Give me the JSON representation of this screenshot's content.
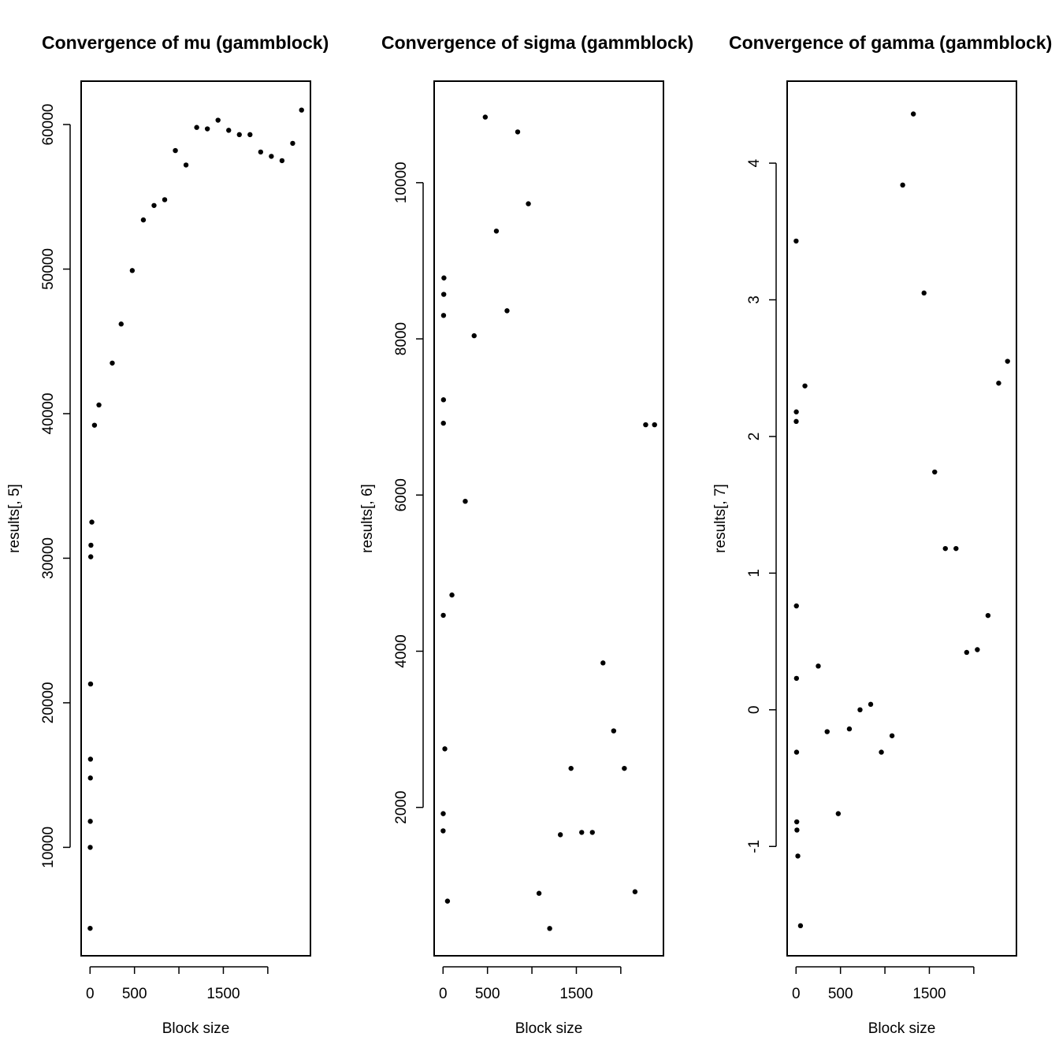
{
  "chart_data": [
    {
      "type": "scatter",
      "title": "Convergence of mu (gammblock)",
      "xlabel": "Block size",
      "ylabel": "results[, 5]",
      "xlim": [
        -100,
        2480
      ],
      "ylim": [
        2500,
        63000
      ],
      "xticks": [
        0,
        500,
        1000,
        1500,
        2000
      ],
      "xtick_labels": [
        "0",
        "500",
        "",
        "1500",
        ""
      ],
      "yticks": [
        10000,
        20000,
        30000,
        40000,
        50000,
        60000
      ],
      "ytick_labels": [
        "10000",
        "20000",
        "30000",
        "40000",
        "50000",
        "60000"
      ],
      "x": [
        1,
        2,
        3,
        4,
        5,
        6,
        8,
        10,
        20,
        50,
        100,
        250,
        350,
        475,
        600,
        720,
        840,
        960,
        1080,
        1200,
        1320,
        1440,
        1560,
        1680,
        1800,
        1920,
        2040,
        2160,
        2280,
        2380
      ],
      "y": [
        4400,
        10000,
        11800,
        14800,
        16100,
        21300,
        30100,
        30900,
        32500,
        39200,
        40600,
        43500,
        46200,
        49900,
        53400,
        54400,
        54800,
        58200,
        57200,
        59800,
        59700,
        60300,
        59600,
        59300,
        59300,
        58100,
        57800,
        57500,
        58700,
        61000
      ]
    },
    {
      "type": "scatter",
      "title": "Convergence of sigma (gammblock)",
      "xlabel": "Block size",
      "ylabel": "results[, 6]",
      "xlim": [
        -100,
        2480
      ],
      "ylim": [
        100,
        11300
      ],
      "xticks": [
        0,
        500,
        1000,
        1500,
        2000
      ],
      "xtick_labels": [
        "0",
        "500",
        "",
        "1500",
        ""
      ],
      "yticks": [
        2000,
        4000,
        6000,
        8000,
        10000
      ],
      "ytick_labels": [
        "2000",
        "4000",
        "6000",
        "8000",
        "10000"
      ],
      "x": [
        1,
        2,
        3,
        4,
        5,
        6,
        8,
        10,
        20,
        50,
        100,
        250,
        350,
        475,
        600,
        720,
        840,
        960,
        1080,
        1200,
        1320,
        1440,
        1560,
        1680,
        1800,
        1920,
        2040,
        2160,
        2280,
        2380
      ],
      "y": [
        1700,
        1920,
        4460,
        6920,
        7220,
        8300,
        8570,
        8780,
        2750,
        800,
        4720,
        5920,
        8040,
        10840,
        9380,
        8360,
        10650,
        9730,
        900,
        450,
        1650,
        2500,
        1680,
        1680,
        3850,
        2980,
        2500,
        920,
        6900,
        6900
      ]
    },
    {
      "type": "scatter",
      "title": "Convergence of gamma (gammblock)",
      "xlabel": "Block size",
      "ylabel": "results[, 7]",
      "xlim": [
        -100,
        2480
      ],
      "ylim": [
        -1.8,
        4.6
      ],
      "xticks": [
        0,
        500,
        1000,
        1500,
        2000
      ],
      "xtick_labels": [
        "0",
        "500",
        "",
        "1500",
        ""
      ],
      "yticks": [
        -1,
        0,
        1,
        2,
        3,
        4
      ],
      "ytick_labels": [
        "-1",
        "0",
        "1",
        "2",
        "3",
        "4"
      ],
      "x": [
        1,
        2,
        3,
        4,
        5,
        6,
        8,
        10,
        20,
        50,
        100,
        250,
        350,
        475,
        600,
        720,
        840,
        960,
        1080,
        1200,
        1320,
        1440,
        1560,
        1680,
        1800,
        1920,
        2040,
        2160,
        2280,
        2380
      ],
      "y": [
        3.43,
        2.11,
        2.18,
        0.76,
        0.23,
        -0.31,
        -0.82,
        -0.88,
        -1.07,
        -1.58,
        2.37,
        0.32,
        -0.16,
        -0.76,
        -0.14,
        0.0,
        0.04,
        -0.31,
        -0.19,
        3.84,
        4.36,
        3.05,
        1.74,
        1.18,
        1.18,
        0.42,
        0.44,
        0.69,
        2.39,
        2.55
      ]
    }
  ]
}
